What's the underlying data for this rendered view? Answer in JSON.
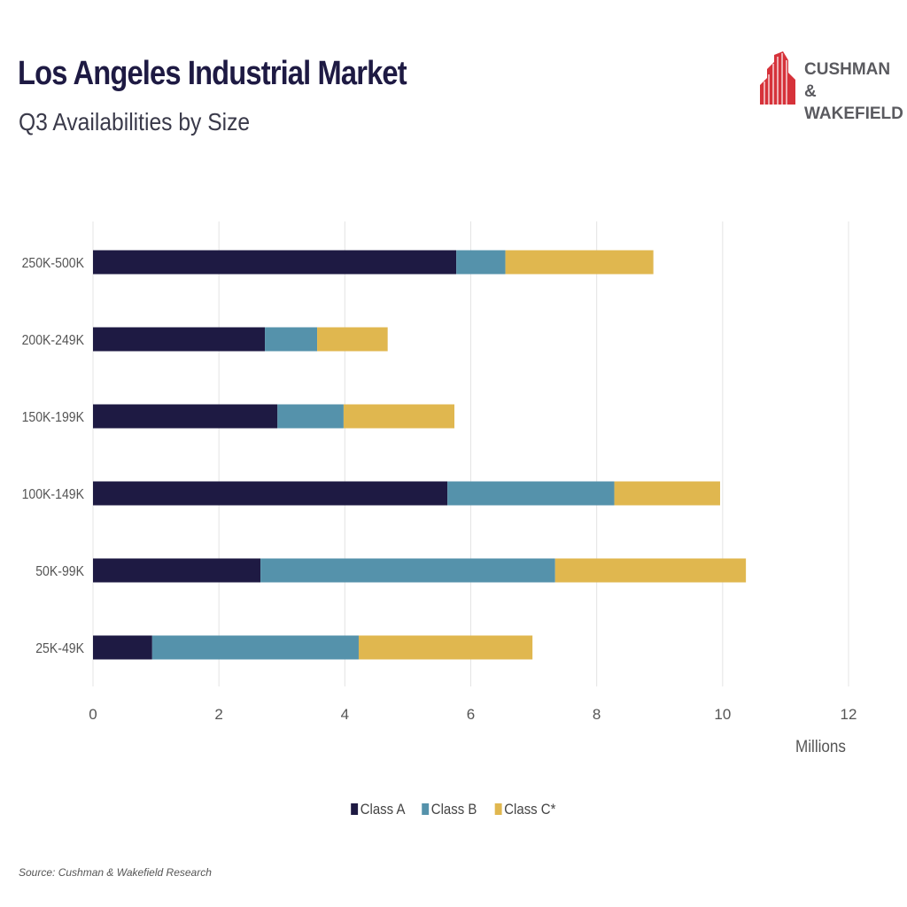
{
  "header": {
    "title": "Los Angeles Industrial Market",
    "subtitle": "Q3 Availabilities by Size"
  },
  "logo": {
    "line1": "CUSHMAN &",
    "line2": "WAKEFIELD",
    "color": "#d6323a"
  },
  "source": "Source: Cushman & Wakefield Research",
  "chart_data": {
    "type": "bar",
    "orientation": "horizontal",
    "stacked": true,
    "categories": [
      "250K-500K",
      "200K-249K",
      "150K-199K",
      "100K-149K",
      "50K-99K",
      "25K-49K"
    ],
    "series": [
      {
        "name": "Class A",
        "color": "#1e1a43",
        "values": [
          5.77,
          2.73,
          2.93,
          5.63,
          2.66,
          0.94
        ]
      },
      {
        "name": "Class B",
        "color": "#5592ab",
        "values": [
          0.78,
          0.83,
          1.05,
          2.65,
          4.68,
          3.28
        ]
      },
      {
        "name": "Class C*",
        "color": "#e0b74f",
        "values": [
          2.35,
          1.12,
          1.76,
          1.68,
          3.03,
          2.76
        ]
      }
    ],
    "xlim": [
      0,
      12
    ],
    "xticks": [
      "0",
      "2",
      "4",
      "6",
      "8",
      "10",
      "12"
    ],
    "xlabel": "Millions",
    "grid": true,
    "legend_position": "bottom"
  }
}
